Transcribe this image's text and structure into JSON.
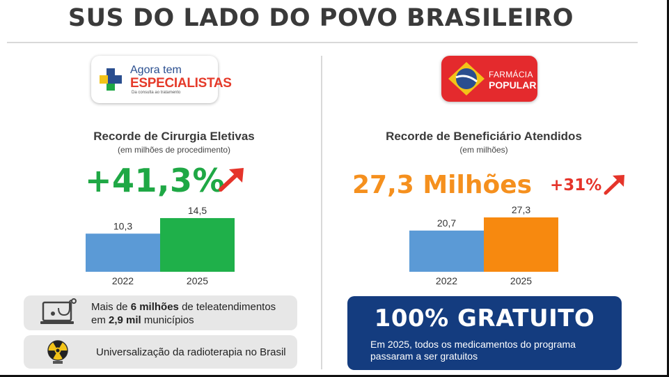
{
  "page": {
    "title": "SUS DO LADO DO POVO BRASILEIRO"
  },
  "left": {
    "logo": {
      "top": "Agora tem",
      "main": "ESPECIALISTAS",
      "sub": "Da consulta ao tratamento"
    },
    "chart_title": "Recorde de Cirurgia Eletivas",
    "chart_subtitle": "(em milhões de procedimento)",
    "headline": "+41,3%",
    "cards": [
      {
        "parts": [
          {
            "text": "Mais de ",
            "bold": false
          },
          {
            "text": "6 milhões",
            "bold": true
          },
          {
            "text": " de teleatendimentos",
            "bold": false
          },
          {
            "text": "\n",
            "bold": false
          },
          {
            "text": "em ",
            "bold": false
          },
          {
            "text": "2,9 mil",
            "bold": true
          },
          {
            "text": " municípios",
            "bold": false
          }
        ],
        "icon": "laptop-stethoscope-icon"
      },
      {
        "parts": [
          {
            "text": "Universalização da radioterapia no Brasil",
            "bold": false
          }
        ],
        "icon": "radiation-icon"
      }
    ]
  },
  "right": {
    "logo": {
      "top": "FARMÁCIA",
      "main": "POPULAR"
    },
    "chart_title": "Recorde de Beneficiário Atendidos",
    "chart_subtitle": "(em milhões)",
    "headline": "27,3 Milhões",
    "growth": "+31%",
    "free_box": {
      "title": "100% GRATUITO",
      "text": "Em 2025, todos os medicamentos do programa passaram a ser gratuitos"
    }
  },
  "chart_data": [
    {
      "type": "bar",
      "title": "Recorde de Cirurgia Eletivas",
      "subtitle": "(em milhões de procedimento)",
      "categories": [
        "2022",
        "2025"
      ],
      "values": [
        10.3,
        14.5
      ],
      "value_labels": [
        "10,3",
        "14,5"
      ],
      "colors": [
        "#5b9ad6",
        "#1fb04a"
      ],
      "ylim": [
        0,
        20.7
      ]
    },
    {
      "type": "bar",
      "title": "Recorde de Beneficiário Atendidos",
      "subtitle": "(em milhões)",
      "categories": [
        "2022",
        "2025"
      ],
      "values": [
        20.7,
        27.3
      ],
      "value_labels": [
        "20,7",
        "27,3"
      ],
      "colors": [
        "#5b9ad6",
        "#f7890f"
      ],
      "ylim": [
        0,
        38.5
      ]
    }
  ],
  "colors": {
    "green": "#1fa845",
    "orange": "#f5901e",
    "red": "#e5342a",
    "navy": "#143c7f",
    "bar_blue": "#5b9ad6"
  }
}
